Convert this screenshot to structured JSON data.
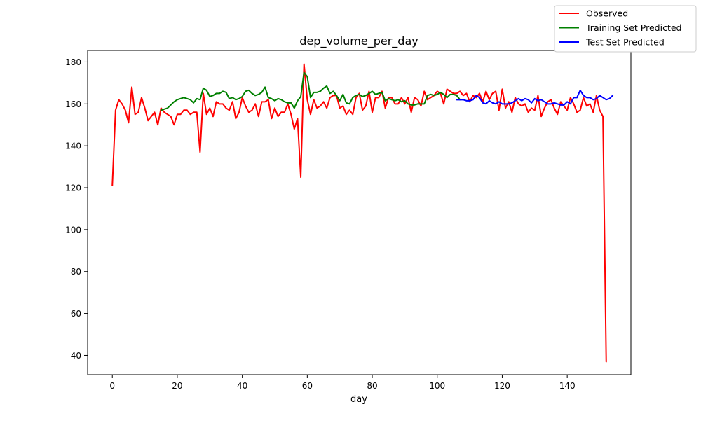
{
  "chart_data": {
    "type": "line",
    "title": "dep_volume_per_day",
    "xlabel": "day",
    "ylabel": "",
    "xlim": [
      -7.6,
      159.6
    ],
    "ylim": [
      30.8,
      185.5
    ],
    "xticks": [
      0,
      20,
      40,
      60,
      80,
      100,
      120,
      140
    ],
    "yticks": [
      40,
      60,
      80,
      100,
      120,
      140,
      160,
      180
    ],
    "grid": false,
    "legend_position": "top-right (outside plot area)",
    "series": [
      {
        "name": "Observed",
        "color": "#ff0000",
        "x_start": 0,
        "values": [
          121,
          157,
          162,
          160,
          157,
          151,
          168,
          155,
          156,
          163,
          158,
          152,
          154,
          156,
          150,
          158,
          156,
          155,
          154,
          150,
          155,
          155,
          157,
          157,
          155,
          156,
          156,
          137,
          165,
          155,
          158,
          154,
          161,
          160,
          160,
          158,
          157,
          161,
          153,
          156,
          163,
          159,
          156,
          157,
          160,
          154,
          161,
          161,
          162,
          153,
          158,
          154,
          156,
          156,
          160,
          155,
          148,
          153,
          125,
          179,
          162,
          155,
          162,
          158,
          159,
          161,
          158,
          163,
          164,
          164,
          158,
          159,
          155,
          157,
          155,
          163,
          165,
          157,
          159,
          166,
          156,
          163,
          163,
          166,
          158,
          163,
          163,
          160,
          160,
          163,
          160,
          163,
          156,
          163,
          162,
          159,
          166,
          162,
          163,
          164,
          166,
          165,
          160,
          167,
          166,
          165,
          165,
          166,
          164,
          165,
          161,
          164,
          163,
          165,
          161,
          166,
          162,
          165,
          166,
          157,
          167,
          158,
          161,
          156,
          163,
          160,
          159,
          160,
          156,
          158,
          157,
          164,
          154,
          158,
          161,
          162,
          158,
          155,
          161,
          159,
          157,
          163,
          160,
          156,
          157,
          163,
          159,
          160,
          156,
          164,
          157,
          154,
          37
        ]
      },
      {
        "name": "Training Set Predicted",
        "color": "#008000",
        "x_start": 15,
        "values": [
          157,
          157.5,
          158,
          159.5,
          161,
          162,
          162.5,
          163,
          162.5,
          162,
          160.5,
          162.5,
          162,
          167.5,
          166.5,
          163.5,
          164,
          165,
          165,
          166,
          165.5,
          162.5,
          163,
          162,
          162.5,
          163.5,
          166,
          166.5,
          165,
          164,
          164.5,
          165.5,
          168,
          163,
          162.5,
          161.5,
          162.5,
          162,
          161,
          160.5,
          160.5,
          158,
          161.5,
          163.5,
          175,
          173,
          163,
          165.5,
          165.5,
          166,
          167.5,
          168.5,
          165,
          166,
          164,
          161.5,
          164.5,
          160.5,
          160,
          163,
          164,
          164.5,
          163.5,
          164,
          165,
          166,
          164.5,
          165,
          165.5,
          161.5,
          162.5,
          162,
          161.5,
          162,
          161,
          161.5,
          160,
          159.5,
          159.5,
          160,
          160,
          160,
          164,
          164.5,
          164,
          164.5,
          165.5,
          164.5,
          163,
          164.5,
          164.5,
          164,
          162
        ]
      },
      {
        "name": "Test Set Predicted",
        "color": "#0000ff",
        "x_start": 106,
        "values": [
          162,
          162,
          162,
          161.5,
          161.5,
          162,
          164,
          163,
          160.5,
          160,
          161.5,
          160.5,
          160,
          161,
          160,
          160,
          160,
          160.5,
          161.5,
          162.5,
          161.5,
          162.5,
          162,
          160.5,
          162.5,
          161.5,
          162,
          161,
          160,
          160,
          160.5,
          160,
          159.5,
          159.5,
          161,
          160,
          163,
          163,
          166.5,
          164,
          163,
          163,
          162,
          162.5,
          164,
          163,
          162,
          162.5,
          164
        ]
      }
    ]
  }
}
